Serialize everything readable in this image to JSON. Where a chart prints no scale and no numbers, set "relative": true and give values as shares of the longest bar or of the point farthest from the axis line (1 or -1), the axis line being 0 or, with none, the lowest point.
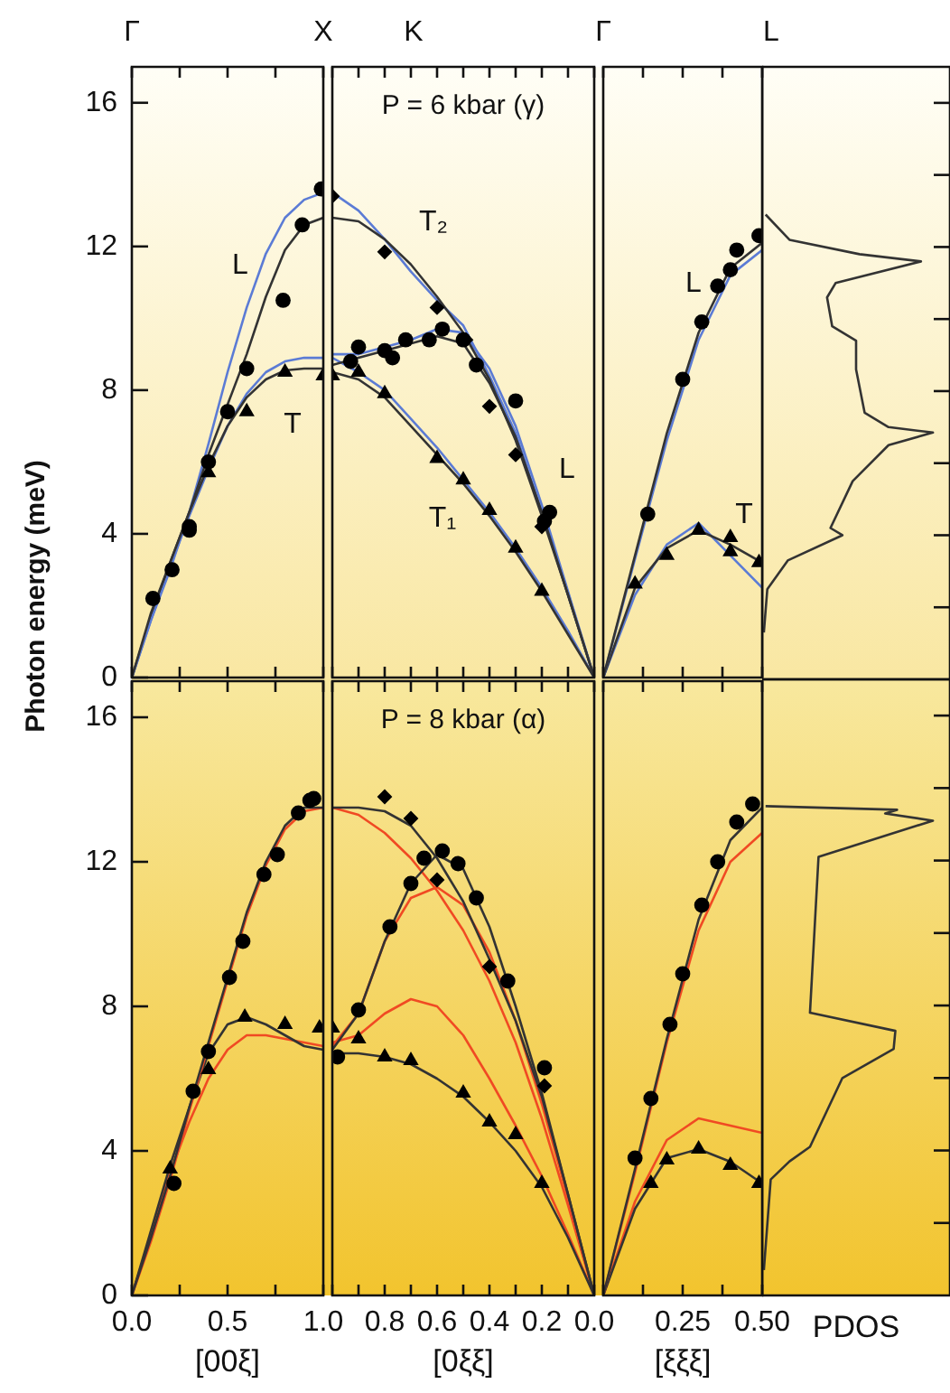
{
  "chart_data": [
    {
      "type": "line",
      "xlim": [
        0,
        1
      ],
      "xticks": [
        {
          "value": 0,
          "label": null
        },
        {
          "value": 0.25,
          "label": null
        },
        {
          "value": 0.5,
          "label": null
        },
        {
          "value": 0.75,
          "label": null
        },
        {
          "value": 1,
          "label": null
        }
      ],
      "ylim": [
        0,
        17
      ],
      "yticks": [
        0,
        4,
        8,
        12,
        16
      ],
      "tick_labels": "y",
      "ylabel": "Photon energy (meV)",
      "annotations": [
        "Γ",
        "X",
        "L",
        "T"
      ],
      "series": [
        {
          "type": "scatter",
          "marker": "circle",
          "color": "#000000",
          "x": [
            0.11,
            0.21,
            0.3,
            0.3,
            0.4,
            0.5,
            0.6,
            0.79,
            0.89,
            0.99
          ],
          "values": [
            2.2,
            3.0,
            4.2,
            4.1,
            6.0,
            7.4,
            8.6,
            10.5,
            12.6,
            13.6
          ]
        },
        {
          "type": "scatter",
          "marker": "triangle",
          "color": "#000000",
          "x": [
            0.4,
            0.6,
            0.8,
            1.0
          ],
          "values": [
            5.7,
            7.4,
            8.5,
            8.4
          ]
        },
        {
          "type": "line",
          "color": "#333333",
          "x": [
            0,
            0.1,
            0.2,
            0.3,
            0.4,
            0.5,
            0.6,
            0.7,
            0.8,
            0.9,
            1
          ],
          "values": [
            0,
            1.8,
            3.2,
            4.6,
            6.2,
            7.6,
            9.0,
            10.6,
            11.9,
            12.6,
            12.8
          ]
        },
        {
          "type": "line",
          "color": "#5b7bd5",
          "x": [
            0,
            0.1,
            0.2,
            0.3,
            0.4,
            0.5,
            0.6,
            0.7,
            0.8,
            0.9,
            1
          ],
          "values": [
            0,
            1.6,
            3.0,
            4.6,
            6.5,
            8.5,
            10.3,
            11.8,
            12.8,
            13.3,
            13.5
          ]
        },
        {
          "type": "line",
          "color": "#333333",
          "x": [
            0,
            0.1,
            0.2,
            0.3,
            0.4,
            0.5,
            0.6,
            0.7,
            0.8,
            0.9,
            1
          ],
          "values": [
            0,
            1.7,
            3.2,
            4.6,
            5.9,
            7.0,
            7.8,
            8.3,
            8.55,
            8.6,
            8.6
          ]
        },
        {
          "type": "line",
          "color": "#5b7bd5",
          "x": [
            0,
            0.1,
            0.2,
            0.3,
            0.4,
            0.5,
            0.6,
            0.7,
            0.8,
            0.9,
            1
          ],
          "values": [
            0,
            1.6,
            3.1,
            4.5,
            5.8,
            7.0,
            7.9,
            8.5,
            8.8,
            8.9,
            8.9
          ]
        }
      ]
    },
    {
      "type": "line",
      "title": "P = 6 kbar (γ)",
      "xlim": [
        1,
        0
      ],
      "xticks": [
        {
          "value": 1,
          "label": null
        },
        {
          "value": 0.9,
          "label": null
        },
        {
          "value": 0.8,
          "label": null
        },
        {
          "value": 0.7,
          "label": null
        },
        {
          "value": 0.6,
          "label": null
        },
        {
          "value": 0.5,
          "label": null
        },
        {
          "value": 0.4,
          "label": null
        },
        {
          "value": 0.3,
          "label": null
        },
        {
          "value": 0.2,
          "label": null
        },
        {
          "value": 0.1,
          "label": null
        },
        {
          "value": 0,
          "label": null
        }
      ],
      "ylim": [
        0,
        17
      ],
      "tick_labels": false,
      "annotations": [
        "K",
        "Γ",
        "T₂",
        "L",
        "T₁"
      ],
      "series": [
        {
          "type": "scatter",
          "marker": "diamond",
          "color": "#000000",
          "x": [
            1.0,
            0.8,
            0.6,
            0.49,
            0.4,
            0.3,
            0.2
          ],
          "values": [
            13.4,
            11.85,
            10.3,
            9.4,
            7.55,
            6.2,
            4.2
          ]
        },
        {
          "type": "scatter",
          "marker": "circle",
          "color": "#000000",
          "x": [
            0.93,
            0.9,
            0.8,
            0.77,
            0.72,
            0.63,
            0.58,
            0.5,
            0.45,
            0.3,
            0.17,
            0.19
          ],
          "values": [
            8.8,
            9.2,
            9.1,
            8.9,
            9.4,
            9.4,
            9.7,
            9.4,
            8.7,
            7.7,
            4.6,
            4.35
          ]
        },
        {
          "type": "scatter",
          "marker": "triangle",
          "color": "#000000",
          "x": [
            1.0,
            0.9,
            0.8,
            0.6,
            0.5,
            0.4,
            0.3,
            0.2
          ],
          "values": [
            8.4,
            8.5,
            7.9,
            6.1,
            5.5,
            4.65,
            3.6,
            2.4
          ]
        },
        {
          "type": "line",
          "color": "#333333",
          "x": [
            1,
            0.9,
            0.8,
            0.7,
            0.6,
            0.5,
            0.4,
            0.3,
            0.2,
            0.1,
            0
          ],
          "values": [
            12.8,
            12.7,
            12.2,
            11.5,
            10.6,
            9.6,
            8.3,
            6.6,
            4.5,
            2.3,
            0
          ]
        },
        {
          "type": "line",
          "color": "#333333",
          "x": [
            1,
            0.9,
            0.8,
            0.7,
            0.6,
            0.5,
            0.4,
            0.3,
            0.2,
            0.1,
            0
          ],
          "values": [
            8.7,
            8.9,
            9.1,
            9.3,
            9.5,
            9.3,
            8.2,
            6.7,
            4.6,
            2.3,
            0
          ]
        },
        {
          "type": "line",
          "color": "#333333",
          "x": [
            1,
            0.9,
            0.8,
            0.7,
            0.6,
            0.5,
            0.4,
            0.3,
            0.2,
            0.1,
            0
          ],
          "values": [
            8.5,
            8.3,
            7.8,
            7.0,
            6.2,
            5.4,
            4.5,
            3.5,
            2.4,
            1.2,
            0
          ]
        },
        {
          "type": "line",
          "color": "#5b7bd5",
          "x": [
            1,
            0.9,
            0.8,
            0.7,
            0.6,
            0.5,
            0.4,
            0.3,
            0.2,
            0.1,
            0
          ],
          "values": [
            13.5,
            13.0,
            12.2,
            11.3,
            10.5,
            9.8,
            8.4,
            6.8,
            4.6,
            2.3,
            0
          ]
        },
        {
          "type": "line",
          "color": "#5b7bd5",
          "x": [
            1,
            0.9,
            0.8,
            0.7,
            0.6,
            0.5,
            0.4,
            0.3,
            0.2,
            0.1,
            0
          ],
          "values": [
            9.0,
            9.0,
            9.2,
            9.4,
            9.7,
            9.6,
            8.6,
            7.0,
            4.8,
            2.4,
            0
          ]
        },
        {
          "type": "line",
          "color": "#5b7bd5",
          "x": [
            1,
            0.9,
            0.8,
            0.7,
            0.6,
            0.5,
            0.4,
            0.3,
            0.2,
            0.1,
            0
          ],
          "values": [
            8.9,
            8.5,
            8.0,
            7.2,
            6.4,
            5.5,
            4.6,
            3.6,
            2.5,
            1.3,
            0
          ]
        }
      ]
    },
    {
      "type": "line",
      "xlim": [
        0,
        0.5
      ],
      "xticks": [
        {
          "value": 0,
          "label": null
        },
        {
          "value": 0.125,
          "label": null
        },
        {
          "value": 0.25,
          "label": null
        },
        {
          "value": 0.375,
          "label": null
        },
        {
          "value": 0.5,
          "label": null
        }
      ],
      "ylim": [
        0,
        17
      ],
      "tick_labels": false,
      "annotations": [
        "L",
        "L",
        "T"
      ],
      "series": [
        {
          "type": "scatter",
          "marker": "circle",
          "color": "#000000",
          "x": [
            0.14,
            0.25,
            0.31,
            0.36,
            0.4,
            0.42,
            0.49
          ],
          "values": [
            4.55,
            8.3,
            9.9,
            10.9,
            11.35,
            11.9,
            12.3
          ]
        },
        {
          "type": "scatter",
          "marker": "triangle",
          "color": "#000000",
          "x": [
            0.1,
            0.2,
            0.3,
            0.4,
            0.4,
            0.49
          ],
          "values": [
            2.6,
            3.4,
            4.1,
            3.9,
            3.5,
            3.2
          ]
        },
        {
          "type": "line",
          "color": "#333333",
          "x": [
            0,
            0.1,
            0.2,
            0.3,
            0.4,
            0.5
          ],
          "values": [
            0,
            3.4,
            6.8,
            9.6,
            11.4,
            12.1
          ]
        },
        {
          "type": "line",
          "color": "#5b7bd5",
          "x": [
            0,
            0.1,
            0.2,
            0.3,
            0.4,
            0.5
          ],
          "values": [
            0,
            3.3,
            6.6,
            9.4,
            11.2,
            11.9
          ]
        },
        {
          "type": "line",
          "color": "#333333",
          "x": [
            0,
            0.1,
            0.2,
            0.3,
            0.4,
            0.5
          ],
          "values": [
            0,
            2.5,
            3.6,
            4.1,
            3.7,
            3.2
          ]
        },
        {
          "type": "line",
          "color": "#5b7bd5",
          "x": [
            0,
            0.1,
            0.2,
            0.3,
            0.4,
            0.5
          ],
          "values": [
            0,
            2.3,
            3.7,
            4.3,
            3.4,
            2.5
          ]
        }
      ]
    },
    {
      "type": "line",
      "orientation": "horizontal",
      "relative": true,
      "color": "#333333",
      "ylim": [
        0,
        17
      ],
      "yticks": [
        {
          "value": 2,
          "label": null
        },
        {
          "value": 4,
          "label": null
        },
        {
          "value": 6,
          "label": null
        },
        {
          "value": 8,
          "label": null
        },
        {
          "value": 10,
          "label": null
        },
        {
          "value": 12,
          "label": null
        },
        {
          "value": 14,
          "label": null
        },
        {
          "value": 16,
          "label": null
        }
      ],
      "tick_labels": false,
      "x": [
        1.3,
        2.5,
        3.3,
        4.0,
        4.2,
        5.5,
        6.5,
        6.85,
        7.0,
        7.4,
        8.6,
        9.4,
        9.8,
        10.6,
        11.0,
        11.6,
        11.8,
        12.2,
        12.9
      ],
      "values": [
        0.01,
        0.03,
        0.15,
        0.47,
        0.4,
        0.53,
        0.74,
        1.0,
        0.74,
        0.6,
        0.55,
        0.55,
        0.41,
        0.38,
        0.43,
        0.93,
        0.57,
        0.16,
        0.02
      ]
    },
    {
      "type": "line",
      "xlim": [
        0,
        1
      ],
      "xticks": [
        {
          "value": 0,
          "label": "0.0"
        },
        {
          "value": 0.25,
          "label": null
        },
        0.5,
        {
          "value": 0.75,
          "label": null
        },
        {
          "value": 1,
          "label": "1.0"
        }
      ],
      "ylim": [
        0,
        17
      ],
      "yticks": [
        0,
        4,
        8,
        12,
        16
      ],
      "xlabel": "[00ξ]",
      "series": [
        {
          "type": "scatter",
          "marker": "circle",
          "color": "#000000",
          "x": [
            0.22,
            0.32,
            0.4,
            0.51,
            0.58,
            0.69,
            0.76,
            0.87,
            0.93,
            0.95
          ],
          "values": [
            3.1,
            5.65,
            6.75,
            8.8,
            9.8,
            11.65,
            12.2,
            13.35,
            13.7,
            13.75
          ]
        },
        {
          "type": "scatter",
          "marker": "triangle",
          "color": "#000000",
          "x": [
            0.2,
            0.4,
            0.59,
            0.8,
            0.98
          ],
          "values": [
            3.5,
            6.25,
            7.7,
            7.5,
            7.4
          ]
        },
        {
          "type": "line",
          "color": "#333333",
          "x": [
            0,
            0.1,
            0.2,
            0.3,
            0.4,
            0.5,
            0.6,
            0.7,
            0.8,
            0.9,
            1
          ],
          "values": [
            0,
            1.6,
            3.3,
            5.2,
            7.0,
            8.8,
            10.6,
            12.0,
            13.0,
            13.5,
            13.5
          ]
        },
        {
          "type": "line",
          "color": "#f04a23",
          "x": [
            0,
            0.1,
            0.2,
            0.3,
            0.4,
            0.5,
            0.6,
            0.7,
            0.8,
            0.9,
            1
          ],
          "values": [
            0,
            1.5,
            3.2,
            5.1,
            6.9,
            8.7,
            10.5,
            11.9,
            12.9,
            13.4,
            13.5
          ]
        },
        {
          "type": "line",
          "color": "#333333",
          "x": [
            0,
            0.1,
            0.2,
            0.3,
            0.4,
            0.5,
            0.6,
            0.7,
            0.8,
            0.9,
            1
          ],
          "values": [
            0,
            1.8,
            3.6,
            5.2,
            6.7,
            7.5,
            7.7,
            7.5,
            7.2,
            6.9,
            6.8
          ]
        },
        {
          "type": "line",
          "color": "#f04a23",
          "x": [
            0,
            0.1,
            0.2,
            0.3,
            0.4,
            0.5,
            0.6,
            0.7,
            0.8,
            0.9,
            1
          ],
          "values": [
            0,
            1.7,
            3.4,
            4.8,
            6.0,
            6.8,
            7.2,
            7.2,
            7.1,
            7.0,
            6.9
          ]
        }
      ]
    },
    {
      "type": "line",
      "title": "P = 8 kbar (α)",
      "xlim": [
        1,
        0
      ],
      "xticks": [
        {
          "value": 1,
          "label": null
        },
        {
          "value": 0.9,
          "label": null
        },
        0.8,
        {
          "value": 0.7,
          "label": null
        },
        0.6,
        {
          "value": 0.5,
          "label": null
        },
        0.4,
        {
          "value": 0.3,
          "label": null
        },
        0.2,
        {
          "value": 0.1,
          "label": null
        },
        {
          "value": 0,
          "label": "0.0"
        }
      ],
      "ylim": [
        0,
        17
      ],
      "tick_labels": "x",
      "xlabel": "[0ξξ]",
      "series": [
        {
          "type": "scatter",
          "marker": "diamond",
          "color": "#000000",
          "x": [
            0.8,
            0.7,
            0.6,
            0.4,
            0.19
          ],
          "values": [
            13.8,
            13.2,
            11.5,
            9.1,
            5.8
          ]
        },
        {
          "type": "scatter",
          "marker": "circle",
          "color": "#000000",
          "x": [
            0.98,
            0.9,
            0.78,
            0.7,
            0.65,
            0.58,
            0.52,
            0.45,
            0.33,
            0.19
          ],
          "values": [
            6.6,
            7.9,
            10.2,
            11.4,
            12.1,
            12.3,
            11.95,
            11.0,
            8.7,
            6.3
          ]
        },
        {
          "type": "scatter",
          "marker": "triangle",
          "color": "#000000",
          "x": [
            1.0,
            0.9,
            0.8,
            0.7,
            0.5,
            0.4,
            0.3,
            0.2
          ],
          "values": [
            7.4,
            7.1,
            6.6,
            6.5,
            5.6,
            4.8,
            4.45,
            3.1
          ]
        },
        {
          "type": "line",
          "color": "#333333",
          "x": [
            1,
            0.9,
            0.8,
            0.7,
            0.6,
            0.5,
            0.4,
            0.3,
            0.2,
            0.1,
            0
          ],
          "values": [
            13.5,
            13.5,
            13.4,
            13.0,
            12.1,
            10.9,
            9.3,
            7.6,
            5.5,
            2.8,
            0
          ]
        },
        {
          "type": "line",
          "color": "#333333",
          "x": [
            1,
            0.9,
            0.8,
            0.7,
            0.6,
            0.5,
            0.4,
            0.3,
            0.2,
            0.1,
            0
          ],
          "values": [
            6.8,
            7.8,
            9.8,
            11.4,
            12.2,
            11.8,
            10.2,
            8.0,
            5.6,
            2.8,
            0
          ]
        },
        {
          "type": "line",
          "color": "#333333",
          "x": [
            1,
            0.9,
            0.8,
            0.7,
            0.6,
            0.5,
            0.4,
            0.3,
            0.2,
            0.1,
            0
          ],
          "values": [
            6.7,
            6.7,
            6.6,
            6.4,
            6.0,
            5.5,
            4.8,
            4.0,
            3.0,
            1.6,
            0
          ]
        },
        {
          "type": "line",
          "color": "#f04a23",
          "x": [
            1,
            0.9,
            0.8,
            0.7,
            0.6,
            0.5,
            0.4,
            0.3,
            0.2,
            0.1,
            0
          ],
          "values": [
            13.5,
            13.3,
            12.8,
            12.1,
            11.2,
            10.1,
            8.7,
            7.0,
            4.9,
            2.5,
            0
          ]
        },
        {
          "type": "line",
          "color": "#f04a23",
          "x": [
            1,
            0.9,
            0.8,
            0.7,
            0.6,
            0.5,
            0.4,
            0.3,
            0.2,
            0.1,
            0
          ],
          "values": [
            6.9,
            7.8,
            9.8,
            11.0,
            11.3,
            10.8,
            9.5,
            7.6,
            5.3,
            2.7,
            0
          ]
        },
        {
          "type": "line",
          "color": "#f04a23",
          "x": [
            1,
            0.9,
            0.8,
            0.7,
            0.6,
            0.5,
            0.4,
            0.3,
            0.2,
            0.1,
            0
          ],
          "values": [
            7.0,
            7.2,
            7.8,
            8.2,
            8.0,
            7.2,
            6.0,
            4.7,
            3.3,
            1.7,
            0
          ]
        }
      ]
    },
    {
      "type": "line",
      "xlim": [
        0,
        0.5
      ],
      "xticks": [
        {
          "value": 0,
          "label": null
        },
        {
          "value": 0.125,
          "label": null
        },
        0.25,
        {
          "value": 0.375,
          "label": null
        },
        {
          "value": 0.5,
          "label": "0.50"
        }
      ],
      "ylim": [
        0,
        17
      ],
      "tick_labels": "x",
      "xlabel": "[ξξξ]",
      "series": [
        {
          "type": "scatter",
          "marker": "circle",
          "color": "#000000",
          "x": [
            0.1,
            0.15,
            0.21,
            0.25,
            0.31,
            0.36,
            0.42,
            0.47
          ],
          "values": [
            3.8,
            5.45,
            7.5,
            8.9,
            10.8,
            12.0,
            13.1,
            13.6
          ]
        },
        {
          "type": "scatter",
          "marker": "triangle",
          "color": "#000000",
          "x": [
            0.15,
            0.2,
            0.3,
            0.4,
            0.49
          ],
          "values": [
            3.1,
            3.75,
            4.05,
            3.6,
            3.1
          ]
        },
        {
          "type": "line",
          "color": "#333333",
          "x": [
            0,
            0.1,
            0.2,
            0.3,
            0.4,
            0.5
          ],
          "values": [
            0,
            3.5,
            7.1,
            10.4,
            12.6,
            13.5
          ]
        },
        {
          "type": "line",
          "color": "#f04a23",
          "x": [
            0,
            0.1,
            0.2,
            0.3,
            0.4,
            0.5
          ],
          "values": [
            0,
            3.4,
            7.0,
            10.1,
            12.0,
            12.8
          ]
        },
        {
          "type": "line",
          "color": "#333333",
          "x": [
            0,
            0.1,
            0.2,
            0.3,
            0.4,
            0.5
          ],
          "values": [
            0,
            2.4,
            3.8,
            4.05,
            3.7,
            3.1
          ]
        },
        {
          "type": "line",
          "color": "#f04a23",
          "x": [
            0,
            0.1,
            0.2,
            0.3,
            0.4,
            0.5
          ],
          "values": [
            0,
            2.6,
            4.3,
            4.9,
            4.7,
            4.5
          ]
        }
      ]
    },
    {
      "type": "line",
      "orientation": "horizontal",
      "relative": true,
      "color": "#333333",
      "xlabel": "PDOS",
      "ylim": [
        0,
        17
      ],
      "yticks": [
        {
          "value": 2,
          "label": null
        },
        {
          "value": 4,
          "label": null
        },
        {
          "value": 6,
          "label": null
        },
        {
          "value": 8,
          "label": null
        },
        {
          "value": 10,
          "label": null
        },
        {
          "value": 12,
          "label": null
        },
        {
          "value": 14,
          "label": null
        },
        {
          "value": 16,
          "label": null
        }
      ],
      "tick_labels": false,
      "x": [
        0.7,
        3.2,
        3.7,
        4.1,
        6.0,
        6.8,
        7.3,
        7.8,
        12.1,
        13.1,
        13.3,
        13.4,
        13.5
      ],
      "values": [
        0.01,
        0.05,
        0.16,
        0.28,
        0.47,
        0.77,
        0.78,
        0.28,
        0.33,
        1.0,
        0.72,
        0.79,
        0.02
      ]
    }
  ]
}
